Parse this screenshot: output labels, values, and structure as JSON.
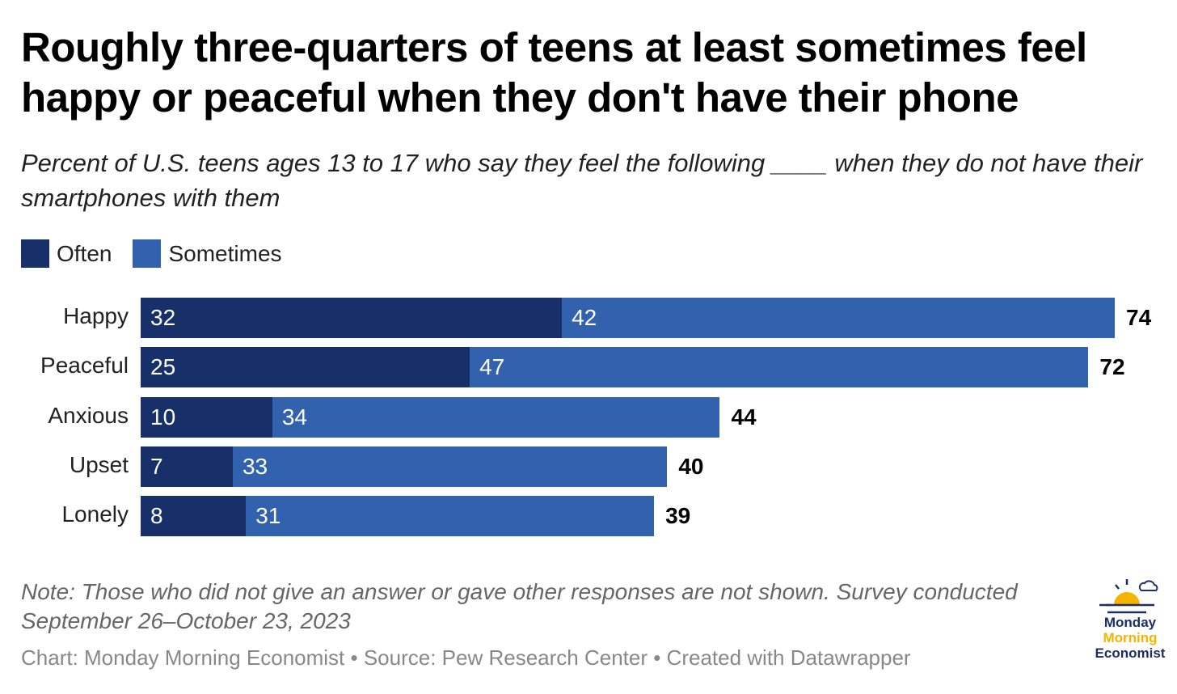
{
  "title": "Roughly three-quarters of teens at least sometimes feel happy or peaceful when they don't have their phone",
  "subtitle": "Percent of U.S. teens ages 13 to 17 who say they feel the following ____ when they do not have their smartphones with them",
  "note": "Note: Those who did not give an answer or gave other responses are not shown. Survey conducted September 26–October 23, 2023",
  "footer": "Chart: Monday Morning Economist • Source: Pew Research Center • Created with Datawrapper",
  "logo": {
    "line1": "Monday",
    "line2": "Morning",
    "line3": "Economist"
  },
  "colors": {
    "often": "#18306a",
    "sometimes": "#3262ae",
    "logo_navy": "#1b2f66",
    "logo_gold": "#f5b400"
  },
  "chart_data": {
    "type": "bar",
    "stacked": true,
    "orientation": "horizontal",
    "title": "Roughly three-quarters of teens at least sometimes feel happy or peaceful when they don't have their phone",
    "categories": [
      "Happy",
      "Peaceful",
      "Anxious",
      "Upset",
      "Lonely"
    ],
    "series": [
      {
        "name": "Often",
        "values": [
          32,
          25,
          10,
          7,
          8
        ]
      },
      {
        "name": "Sometimes",
        "values": [
          42,
          47,
          34,
          33,
          31
        ]
      }
    ],
    "totals": [
      74,
      72,
      44,
      40,
      39
    ],
    "xlim": [
      0,
      74
    ],
    "legend": "top-left",
    "grid": false
  }
}
